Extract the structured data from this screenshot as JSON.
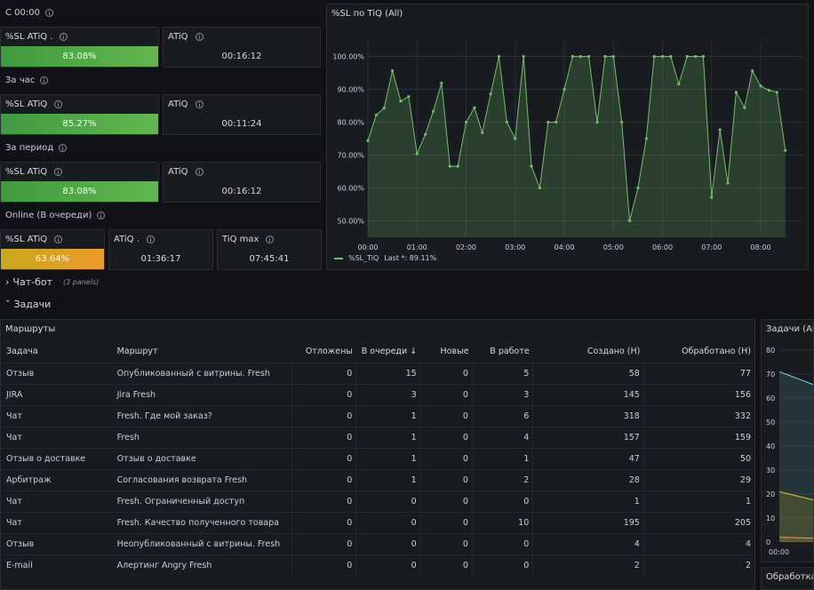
{
  "sections": {
    "c0000": "С 00:00",
    "hour": "За час",
    "period": "За период",
    "online": "Online (В очереди)"
  },
  "stats": {
    "c0000": {
      "sl_title": "%SL ATiQ .",
      "sl_value": "83.08%",
      "sl_fraction": 0.8308,
      "atiq_title": "ATiQ",
      "atiq_value": "00:16:12"
    },
    "hour": {
      "sl_title": "%SL ATiQ",
      "sl_value": "85.27%",
      "sl_fraction": 0.8527,
      "atiq_title": "ATiQ",
      "atiq_value": "00:11:24"
    },
    "period": {
      "sl_title": "%SL ATiQ",
      "sl_value": "83.08%",
      "sl_fraction": 0.8308,
      "atiq_title": "ATiQ",
      "atiq_value": "00:16:12"
    },
    "online": {
      "sl_title": "%SL ATiQ",
      "sl_value": "63.64%",
      "sl_fraction": 0.6364,
      "atiq_title": "ATiQ .",
      "atiq_value": "01:36:17",
      "tiqmax_title": "TiQ max",
      "tiqmax_value": "07:45:41"
    }
  },
  "colors": {
    "green": "#73bf69",
    "orange": "#ee9a2a",
    "bg": "#111217",
    "panel": "#181b1f"
  },
  "sl_chart": {
    "title": "%SL по TiQ (All)",
    "legend_label": "%SL_TiQ",
    "legend_last": "Last *: 89.11%"
  },
  "chart_data": [
    {
      "type": "line",
      "title": "%SL по TiQ (All)",
      "xlabel": "",
      "ylabel": "",
      "ylim": [
        45,
        105
      ],
      "xlim": [
        0,
        8.85
      ],
      "yticks": [
        50,
        60,
        70,
        80,
        90,
        100
      ],
      "ytick_labels": [
        "50.00%",
        "60.00%",
        "70.00%",
        "80.00%",
        "90.00%",
        "100.00%"
      ],
      "xticks": [
        0,
        1,
        2,
        3,
        4,
        5,
        6,
        7,
        8
      ],
      "xtick_labels": [
        "00:00",
        "01:00",
        "02:00",
        "03:00",
        "04:00",
        "05:00",
        "06:00",
        "07:00",
        "08:00"
      ],
      "grid": true,
      "legend_position": "bottom-left",
      "series": [
        {
          "name": "%SL_TiQ",
          "color": "#73bf69",
          "x": [
            0,
            0.17,
            0.33,
            0.5,
            0.67,
            0.83,
            1.0,
            1.17,
            1.33,
            1.5,
            1.67,
            1.83,
            2.0,
            2.17,
            2.33,
            2.5,
            2.67,
            2.83,
            3.0,
            3.17,
            3.33,
            3.5,
            3.67,
            3.83,
            4.0,
            4.17,
            4.33,
            4.5,
            4.67,
            4.83,
            5.0,
            5.17,
            5.33,
            5.5,
            5.67,
            5.83,
            6.0,
            6.17,
            6.33,
            6.5,
            6.67,
            6.83,
            7.0,
            7.17,
            7.33,
            7.5,
            7.67,
            7.83,
            8.0,
            8.17,
            8.33,
            8.5
          ],
          "values": [
            74.4,
            82.2,
            84.3,
            95.6,
            86.4,
            87.8,
            70.4,
            76.3,
            83.3,
            91.9,
            66.6,
            66.6,
            80,
            84.4,
            76.8,
            88.6,
            100,
            80,
            75,
            100,
            66.6,
            60,
            80,
            80,
            90,
            100,
            100,
            100,
            80,
            100,
            100,
            80,
            50,
            60,
            75,
            100,
            100,
            100,
            91.6,
            100,
            100,
            100,
            57.1,
            77.7,
            61.5,
            89.1,
            84.4,
            95.6,
            91,
            89.7,
            89.1,
            71.4
          ]
        }
      ]
    },
    {
      "type": "line",
      "title": "Задачи (All)",
      "xlabel": "",
      "ylabel": "",
      "ylim": [
        0,
        80
      ],
      "yticks": [
        0,
        10,
        20,
        30,
        40,
        50,
        60,
        70,
        80
      ],
      "xtick_labels": [
        "00:00"
      ],
      "series": [
        {
          "color": "#6ed0e0",
          "x": [
            0,
            1
          ],
          "values": [
            71,
            57
          ]
        },
        {
          "color": "#f2cc0c",
          "x": [
            0,
            1
          ],
          "values": [
            21,
            12
          ]
        },
        {
          "color": "#ff9830",
          "x": [
            0,
            1
          ],
          "values": [
            2,
            1
          ]
        }
      ]
    }
  ],
  "collapsed_rows": {
    "chatbot_title": "Чат-бот",
    "chatbot_sub": "(3 panels)",
    "tasks_title": "Задачи"
  },
  "routes": {
    "title": "Маршруты",
    "headers": [
      "Задача",
      "Маршрут",
      "Отложены",
      "В очереди",
      "Новые",
      "В работе",
      "Создано (Н)",
      "Обработано (Н)"
    ],
    "rows": [
      [
        "Отзыв",
        "Опубликованный с витрины. Fresh",
        "0",
        "15",
        "0",
        "5",
        "58",
        "77"
      ],
      [
        "JIRA",
        "Jira Fresh",
        "0",
        "3",
        "0",
        "3",
        "145",
        "156"
      ],
      [
        "Чат",
        "Fresh. Где мой заказ?",
        "0",
        "1",
        "0",
        "6",
        "318",
        "332"
      ],
      [
        "Чат",
        "Fresh",
        "0",
        "1",
        "0",
        "4",
        "157",
        "159"
      ],
      [
        "Отзыв о доставке",
        "Отзыв о доставке",
        "0",
        "1",
        "0",
        "1",
        "47",
        "50"
      ],
      [
        "Арбитраж",
        "Согласования возврата Fresh",
        "0",
        "1",
        "0",
        "2",
        "28",
        "29"
      ],
      [
        "Чат",
        "Fresh. Ограниченный доступ",
        "0",
        "0",
        "0",
        "0",
        "1",
        "1"
      ],
      [
        "Чат",
        "Fresh. Качество полученного товара",
        "0",
        "0",
        "0",
        "10",
        "195",
        "205"
      ],
      [
        "Отзыв",
        "Неопубликованный с витрины. Fresh",
        "0",
        "0",
        "0",
        "0",
        "4",
        "4"
      ],
      [
        "E-mail",
        "Алертинг Angry Fresh",
        "0",
        "0",
        "0",
        "0",
        "2",
        "2"
      ]
    ]
  },
  "tasks_chart": {
    "title": "Задачи (All)"
  },
  "processing_panel": {
    "title": "Обработка"
  }
}
